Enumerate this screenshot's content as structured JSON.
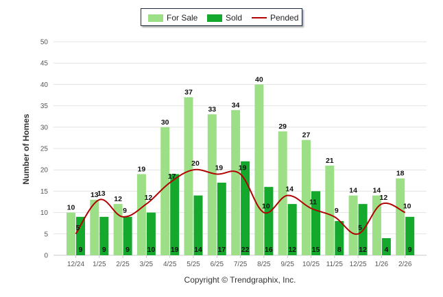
{
  "legend": {
    "for_sale": "For Sale",
    "sold": "Sold",
    "pended": "Pended"
  },
  "footer": {
    "copyright": "Copyright © Trendgraphix, Inc."
  },
  "colors": {
    "for_sale": "#9ddf87",
    "sold": "#14a82c",
    "pended": "#b00000",
    "grid": "#e3e3e3",
    "axis_text": "#555555"
  },
  "chart_data": {
    "type": "bar",
    "ylabel": "Number of Homes",
    "xlabel": "",
    "ylim": [
      0,
      50
    ],
    "yticks": [
      0,
      5,
      10,
      15,
      20,
      25,
      30,
      35,
      40,
      45,
      50
    ],
    "grid": true,
    "legend_position": "top-center",
    "categories": [
      "12/24",
      "1/25",
      "2/25",
      "3/25",
      "4/25",
      "5/25",
      "6/25",
      "7/25",
      "8/25",
      "9/25",
      "10/25",
      "11/25",
      "12/25",
      "1/26",
      "2/26"
    ],
    "series": [
      {
        "name": "For Sale",
        "kind": "bar",
        "values": [
          10,
          13,
          12,
          19,
          30,
          37,
          33,
          34,
          40,
          29,
          27,
          21,
          14,
          14,
          18
        ]
      },
      {
        "name": "Sold",
        "kind": "bar",
        "values": [
          9,
          9,
          9,
          10,
          19,
          14,
          17,
          22,
          16,
          12,
          15,
          8,
          12,
          4,
          9
        ]
      },
      {
        "name": "Pended",
        "kind": "line",
        "values": [
          5,
          13,
          9,
          12,
          17,
          20,
          19,
          19,
          10,
          14,
          11,
          9,
          5,
          12,
          10
        ]
      }
    ]
  }
}
